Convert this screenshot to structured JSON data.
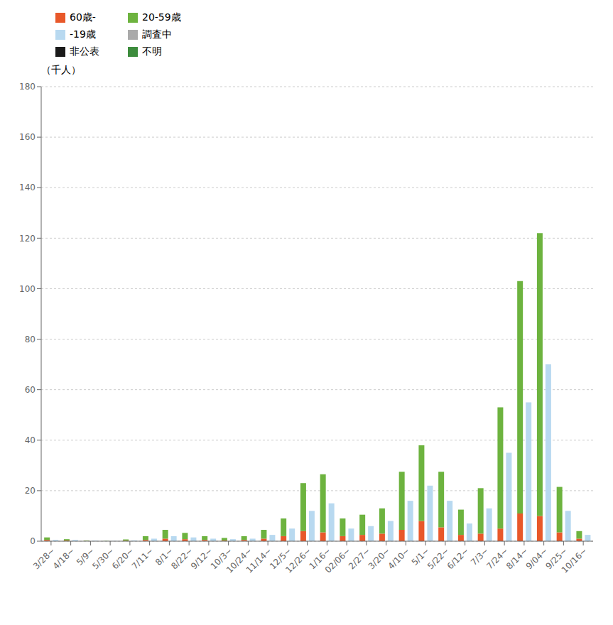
{
  "chart_data": {
    "type": "bar",
    "ylabel": "（千人）",
    "categories": [
      "3/28~",
      "4/18~",
      "5/9~",
      "5/30~",
      "6/20~",
      "7/11~",
      "8/1~",
      "8/22~",
      "9/12~",
      "10/3~",
      "10/24~",
      "11/14~",
      "12/5~",
      "12/26~",
      "1/16~",
      "02/06~",
      "2/27~",
      "3/20~",
      "4/10~",
      "5/1~",
      "5/22~",
      "6/12~",
      "7/3~",
      "7/24~",
      "8/14~",
      "9/04~",
      "9/25~",
      "10/16~"
    ],
    "series": [
      {
        "name": "60歳-",
        "color": "#e8582a",
        "stacked": true,
        "values": [
          0.5,
          0.3,
          0.1,
          0.0,
          0.2,
          0.5,
          1.0,
          0.8,
          0.5,
          0.3,
          0.5,
          1.0,
          2.0,
          4.0,
          3.5,
          2.0,
          2.5,
          3.0,
          4.5,
          8.0,
          5.5,
          2.5,
          3.0,
          5.0,
          11.0,
          10.0,
          3.5,
          1.0
        ]
      },
      {
        "name": "20-59歳",
        "color": "#6db33f",
        "stacked": true,
        "values": [
          1.0,
          0.5,
          0.2,
          0.1,
          0.5,
          1.5,
          3.5,
          2.5,
          1.5,
          1.0,
          1.5,
          3.5,
          7.0,
          19.0,
          23.0,
          7.0,
          8.0,
          10.0,
          23.0,
          30.0,
          22.0,
          10.0,
          18.0,
          48.0,
          92.0,
          112.0,
          18.0,
          3.0
        ]
      },
      {
        "name": "-19歳",
        "color": "#b8d9f0",
        "stacked": false,
        "values": [
          0.5,
          0.5,
          0.2,
          0.1,
          0.3,
          1.0,
          2.0,
          1.5,
          1.0,
          0.8,
          1.0,
          2.5,
          5.0,
          12.0,
          15.0,
          5.0,
          6.0,
          8.0,
          16.0,
          22.0,
          16.0,
          7.0,
          13.0,
          35.0,
          55.0,
          70.0,
          12.0,
          2.5
        ]
      },
      {
        "name": "調査中",
        "color": "#aaaaaa",
        "values": [
          null,
          null,
          null,
          null,
          null,
          null,
          null,
          null,
          null,
          null,
          null,
          null,
          null,
          null,
          null,
          null,
          null,
          null,
          null,
          null,
          null,
          null,
          null,
          null,
          null,
          null,
          null,
          null
        ]
      },
      {
        "name": "非公表",
        "color": "#1a1a1a",
        "values": [
          null,
          null,
          null,
          null,
          null,
          null,
          null,
          null,
          null,
          null,
          null,
          null,
          null,
          null,
          null,
          null,
          null,
          null,
          null,
          null,
          null,
          null,
          null,
          null,
          null,
          null,
          null,
          null
        ]
      },
      {
        "name": "不明",
        "color": "#3d8c3d",
        "values": [
          null,
          null,
          null,
          null,
          null,
          null,
          null,
          null,
          null,
          null,
          null,
          null,
          null,
          null,
          null,
          null,
          null,
          null,
          null,
          null,
          null,
          null,
          null,
          null,
          null,
          null,
          null,
          null
        ]
      }
    ],
    "ylim": [
      0,
      180
    ],
    "yticks": [
      0,
      20,
      40,
      60,
      80,
      100,
      120,
      140,
      160,
      180
    ],
    "grid": true,
    "legend": "upper left"
  }
}
